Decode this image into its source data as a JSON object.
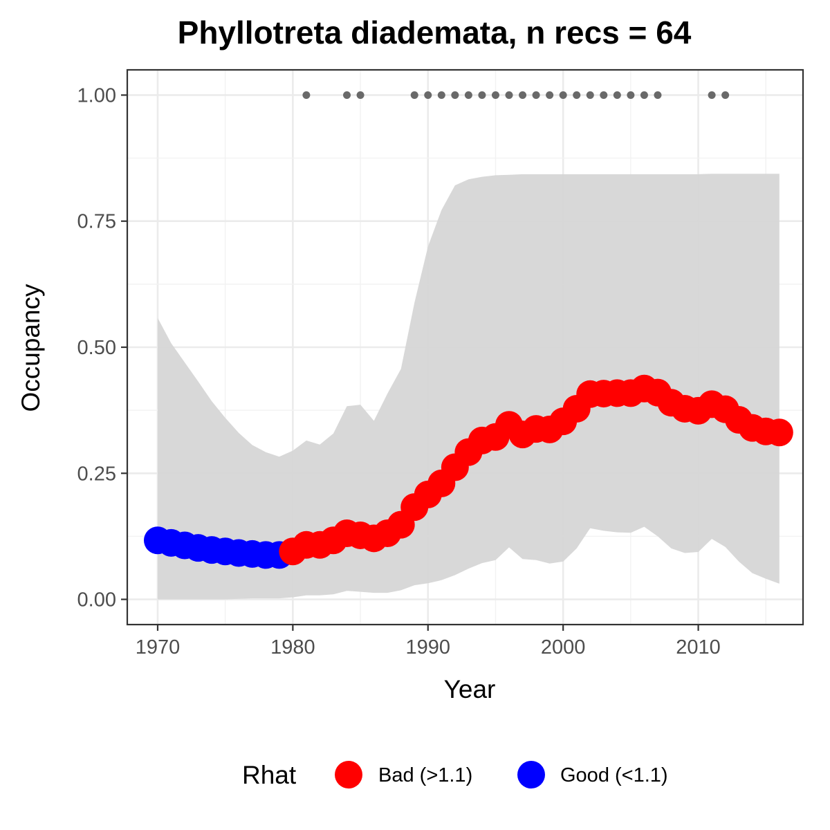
{
  "chart_data": {
    "type": "line",
    "title": "Phyllotreta diademata, n recs = 64",
    "xlabel": "Year",
    "ylabel": "Occupancy",
    "xlim": [
      1967.75,
      2017.75
    ],
    "ylim": [
      -0.05,
      1.05
    ],
    "x_ticks": [
      1970,
      1980,
      1990,
      2000,
      2010
    ],
    "y_ticks": [
      0,
      0.25,
      0.5,
      0.75,
      1.0
    ],
    "y_tick_labels": [
      "0.00",
      "0.25",
      "0.50",
      "0.75",
      "1.00"
    ],
    "grid": true,
    "legend": {
      "title": "Rhat",
      "position": "bottom",
      "entries": [
        {
          "label": "Bad (>1.1)",
          "color": "#ff0000"
        },
        {
          "label": "Good (<1.1)",
          "color": "#0000ff"
        }
      ]
    },
    "colors": {
      "bad": "#ff0000",
      "good": "#0000ff",
      "ribbon": "#d6d6d6",
      "record_points": "#696969"
    },
    "series": [
      {
        "x": [
          1970,
          1971,
          1972,
          1973,
          1974,
          1975,
          1976,
          1977,
          1978,
          1979,
          1980,
          1981,
          1982,
          1983,
          1984,
          1985,
          1986,
          1987,
          1988,
          1989,
          1990,
          1991,
          1992,
          1993,
          1994,
          1995,
          1996,
          1997,
          1998,
          1999,
          2000,
          2001,
          2002,
          2003,
          2004,
          2005,
          2006,
          2007,
          2008,
          2009,
          2010,
          2011,
          2012,
          2013,
          2014,
          2015,
          2016
        ],
        "mean": [
          0.117,
          0.112,
          0.107,
          0.102,
          0.098,
          0.095,
          0.092,
          0.09,
          0.088,
          0.088,
          0.095,
          0.108,
          0.108,
          0.117,
          0.131,
          0.127,
          0.121,
          0.131,
          0.148,
          0.183,
          0.208,
          0.23,
          0.262,
          0.292,
          0.315,
          0.322,
          0.346,
          0.327,
          0.338,
          0.337,
          0.353,
          0.378,
          0.407,
          0.408,
          0.409,
          0.409,
          0.418,
          0.41,
          0.39,
          0.378,
          0.374,
          0.387,
          0.377,
          0.356,
          0.34,
          0.333,
          0.331
        ],
        "lower": [
          0.0,
          0.0,
          0.0,
          0.0,
          0.0,
          0.0,
          0.001,
          0.002,
          0.002,
          0.002,
          0.004,
          0.008,
          0.008,
          0.01,
          0.017,
          0.015,
          0.013,
          0.013,
          0.018,
          0.028,
          0.032,
          0.038,
          0.048,
          0.061,
          0.072,
          0.078,
          0.103,
          0.08,
          0.078,
          0.071,
          0.075,
          0.101,
          0.141,
          0.136,
          0.133,
          0.132,
          0.144,
          0.125,
          0.101,
          0.092,
          0.094,
          0.12,
          0.104,
          0.075,
          0.052,
          0.041,
          0.031
        ],
        "upper": [
          0.558,
          0.508,
          0.47,
          0.432,
          0.393,
          0.36,
          0.33,
          0.306,
          0.292,
          0.283,
          0.295,
          0.315,
          0.307,
          0.329,
          0.383,
          0.386,
          0.354,
          0.408,
          0.457,
          0.588,
          0.7,
          0.772,
          0.821,
          0.833,
          0.838,
          0.841,
          0.842,
          0.843,
          0.843,
          0.843,
          0.843,
          0.843,
          0.843,
          0.843,
          0.843,
          0.843,
          0.843,
          0.843,
          0.843,
          0.843,
          0.843,
          0.844,
          0.844,
          0.844,
          0.844,
          0.844,
          0.844
        ],
        "rhat_status": [
          "good",
          "good",
          "good",
          "good",
          "good",
          "good",
          "good",
          "good",
          "good",
          "good",
          "bad",
          "bad",
          "bad",
          "bad",
          "bad",
          "bad",
          "bad",
          "bad",
          "bad",
          "bad",
          "bad",
          "bad",
          "bad",
          "bad",
          "bad",
          "bad",
          "bad",
          "bad",
          "bad",
          "bad",
          "bad",
          "bad",
          "bad",
          "bad",
          "bad",
          "bad",
          "bad",
          "bad",
          "bad",
          "bad",
          "bad",
          "bad",
          "bad",
          "bad",
          "bad",
          "bad",
          "bad"
        ]
      }
    ],
    "record_years": [
      1981,
      1984,
      1985,
      1989,
      1990,
      1991,
      1992,
      1993,
      1994,
      1995,
      1996,
      1997,
      1998,
      1999,
      2000,
      2001,
      2002,
      2003,
      2004,
      2005,
      2006,
      2007,
      2011,
      2012
    ],
    "record_value": 1.0
  }
}
